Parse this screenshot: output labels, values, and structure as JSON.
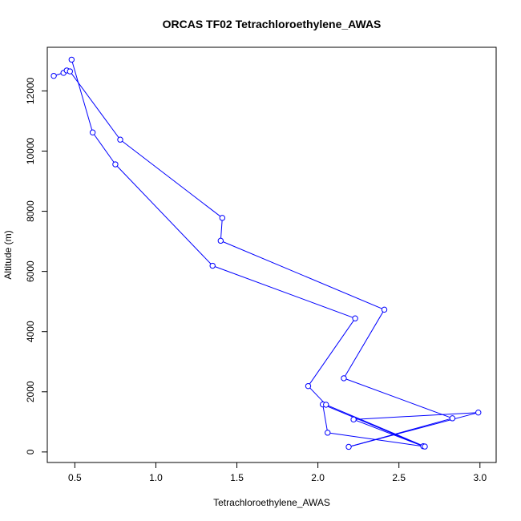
{
  "chart_data": {
    "type": "line",
    "title": "ORCAS TF02 Tetrachloroethylene_AWAS",
    "xlabel": "Tetrachloroethylene_AWAS",
    "ylabel": "Altitude (m)",
    "xlim": [
      0.33,
      3.1
    ],
    "ylim": [
      -350,
      13450
    ],
    "xticks": [
      0.5,
      1.0,
      1.5,
      2.0,
      2.5,
      3.0
    ],
    "xtick_labels": [
      "0.5",
      "1.0",
      "1.5",
      "2.0",
      "2.5",
      "3.0"
    ],
    "yticks": [
      0,
      2000,
      4000,
      6000,
      8000,
      10000,
      12000
    ],
    "ytick_labels": [
      "0",
      "2000",
      "4000",
      "6000",
      "8000",
      "10000",
      "12000"
    ],
    "grid": false,
    "series": [
      {
        "color": "#0000ff",
        "marker": "open-circle",
        "points": [
          {
            "x": 0.37,
            "y": 12500
          },
          {
            "x": 0.43,
            "y": 12600
          },
          {
            "x": 0.45,
            "y": 12680
          },
          {
            "x": 0.47,
            "y": 12650
          },
          {
            "x": 0.78,
            "y": 10380
          },
          {
            "x": 1.41,
            "y": 7780
          },
          {
            "x": 1.4,
            "y": 7020
          },
          {
            "x": 2.41,
            "y": 4730
          },
          {
            "x": 2.16,
            "y": 2450
          },
          {
            "x": 2.83,
            "y": 1120
          },
          {
            "x": 2.19,
            "y": 170
          },
          {
            "x": 2.99,
            "y": 1310
          },
          {
            "x": 2.22,
            "y": 1080
          },
          {
            "x": 2.65,
            "y": 190
          },
          {
            "x": 2.03,
            "y": 1580
          },
          {
            "x": 2.06,
            "y": 640
          },
          {
            "x": 2.66,
            "y": 180
          },
          {
            "x": 2.05,
            "y": 1570
          },
          {
            "x": 1.94,
            "y": 2190
          },
          {
            "x": 2.23,
            "y": 4440
          },
          {
            "x": 1.35,
            "y": 6190
          },
          {
            "x": 0.75,
            "y": 9560
          },
          {
            "x": 0.61,
            "y": 10620
          },
          {
            "x": 0.48,
            "y": 13040
          }
        ]
      }
    ]
  }
}
